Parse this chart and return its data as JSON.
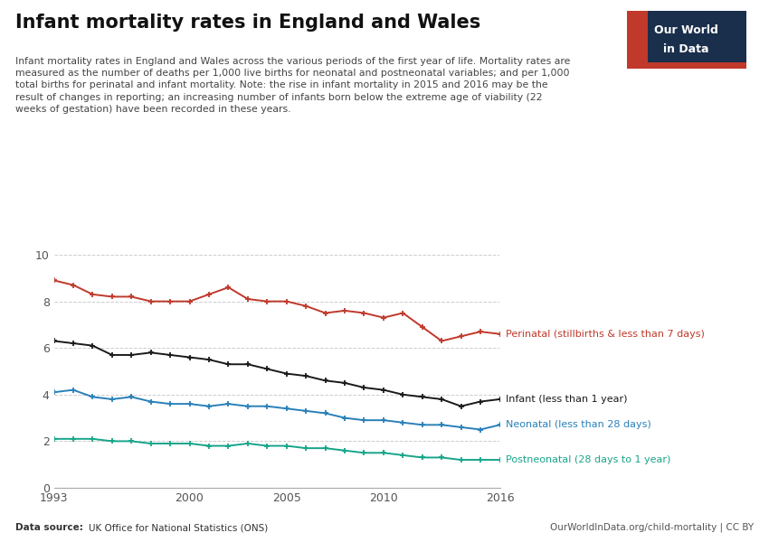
{
  "title": "Infant mortality rates in England and Wales",
  "subtitle": "Infant mortality rates in England and Wales across the various periods of the first year of life. Mortality rates are\nmeasured as the number of deaths per 1,000 live births for neonatal and postneonatal variables; and per 1,000\ntotal births for perinatal and infant mortality. Note: the rise in infant mortality in 2015 and 2016 may be the\nresult of changes in reporting; an increasing number of infants born below the extreme age of viability (22\nweeks of gestation) have been recorded in these years.",
  "datasource_bold": "Data source: ",
  "datasource_normal": "UK Office for National Statistics (ONS)",
  "credit": "OurWorldInData.org/child-mortality | CC BY",
  "years": [
    1993,
    1994,
    1995,
    1996,
    1997,
    1998,
    1999,
    2000,
    2001,
    2002,
    2003,
    2004,
    2005,
    2006,
    2007,
    2008,
    2009,
    2010,
    2011,
    2012,
    2013,
    2014,
    2015,
    2016
  ],
  "perinatal": [
    8.9,
    8.7,
    8.3,
    8.2,
    8.2,
    8.0,
    8.0,
    8.0,
    8.3,
    8.6,
    8.1,
    8.0,
    8.0,
    7.8,
    7.5,
    7.6,
    7.5,
    7.3,
    7.5,
    6.9,
    6.3,
    6.5,
    6.7,
    6.6
  ],
  "infant": [
    6.3,
    6.2,
    6.1,
    5.7,
    5.7,
    5.8,
    5.7,
    5.6,
    5.5,
    5.3,
    5.3,
    5.1,
    4.9,
    4.8,
    4.6,
    4.5,
    4.3,
    4.2,
    4.0,
    3.9,
    3.8,
    3.5,
    3.7,
    3.8
  ],
  "neonatal": [
    4.1,
    4.2,
    3.9,
    3.8,
    3.9,
    3.7,
    3.6,
    3.6,
    3.5,
    3.6,
    3.5,
    3.5,
    3.4,
    3.3,
    3.2,
    3.0,
    2.9,
    2.9,
    2.8,
    2.7,
    2.7,
    2.6,
    2.5,
    2.7
  ],
  "postneonatal": [
    2.1,
    2.1,
    2.1,
    2.0,
    2.0,
    1.9,
    1.9,
    1.9,
    1.8,
    1.8,
    1.9,
    1.8,
    1.8,
    1.7,
    1.7,
    1.6,
    1.5,
    1.5,
    1.4,
    1.3,
    1.3,
    1.2,
    1.2,
    1.2
  ],
  "perinatal_color": "#C0392B",
  "infant_color": "#1A1A1A",
  "neonatal_color": "#2980B9",
  "postneonatal_color": "#17A589",
  "background_color": "#FFFFFF",
  "grid_color": "#CCCCCC",
  "ylim": [
    0,
    10
  ],
  "yticks": [
    0,
    2,
    4,
    6,
    8,
    10
  ],
  "xticks": [
    1993,
    2000,
    2005,
    2010,
    2016
  ],
  "logo_bg": "#1A2F4B",
  "logo_red": "#C0392B",
  "logo_line1": "Our World",
  "logo_line2": "in Data",
  "perinatal_label": "Perinatal (stillbirths & less than 7 days)",
  "infant_label": "Infant (less than 1 year)",
  "neonatal_label": "Neonatal (less than 28 days)",
  "postneonatal_label": "Postneonatal (28 days to 1 year)"
}
